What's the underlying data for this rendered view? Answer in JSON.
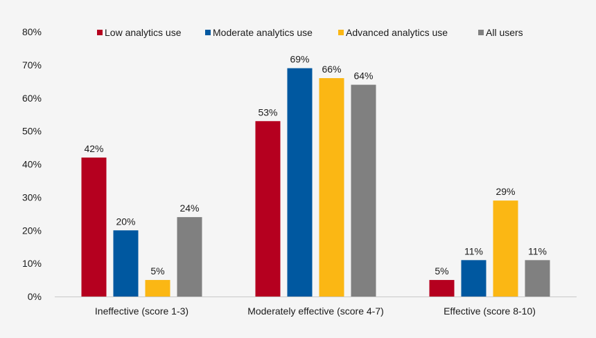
{
  "chart_data": {
    "type": "bar",
    "title": "",
    "xlabel": "",
    "ylabel": "",
    "ylim": [
      0,
      80
    ],
    "yticks": [
      "0%",
      "10%",
      "20%",
      "30%",
      "40%",
      "50%",
      "60%",
      "70%",
      "80%"
    ],
    "grid": false,
    "legend_position": "top",
    "categories": [
      "Ineffective (score 1-3)",
      "Moderately effective (score 4-7)",
      "Effective (score 8-10)"
    ],
    "series": [
      {
        "name": "Low analytics use",
        "color": "#b5001f",
        "values": [
          42,
          53,
          5
        ],
        "labels": [
          "42%",
          "53%",
          "5%"
        ]
      },
      {
        "name": "Moderate analytics use",
        "color": "#0058a0",
        "values": [
          20,
          69,
          11
        ],
        "labels": [
          "20%",
          "69%",
          "11%"
        ]
      },
      {
        "name": "Advanced analytics use",
        "color": "#fbb714",
        "values": [
          5,
          66,
          29
        ],
        "labels": [
          "5%",
          "66%",
          "29%"
        ]
      },
      {
        "name": "All users",
        "color": "#808080",
        "values": [
          24,
          64,
          11
        ],
        "labels": [
          "24%",
          "64%",
          "11%"
        ]
      }
    ]
  }
}
